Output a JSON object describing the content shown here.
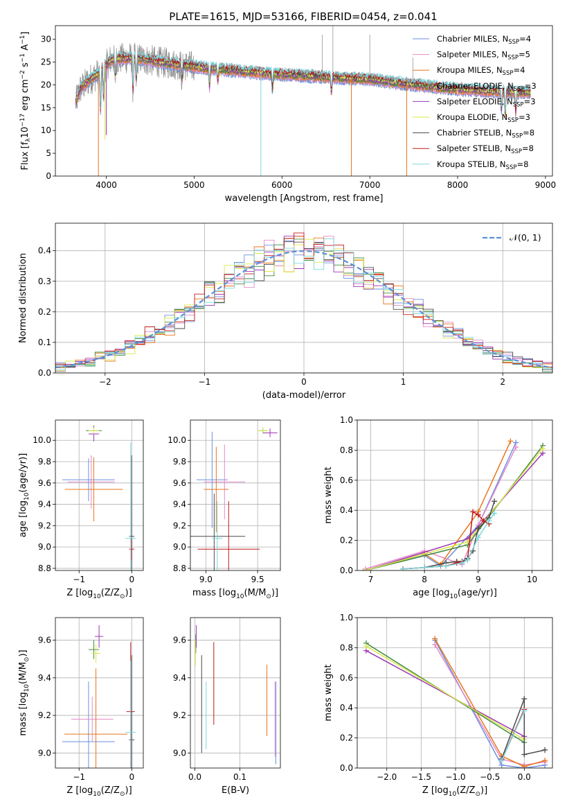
{
  "figure": {
    "title": "PLATE=1615, MJD=53166, FIBERID=0454, z=0.041"
  },
  "models": [
    {
      "key": "chab_miles",
      "label": "Chabrier MILES, N",
      "sub": "SSP",
      "suffix": "=4",
      "color": "#6a8fe0"
    },
    {
      "key": "salp_miles",
      "label": "Salpeter MILES, N",
      "sub": "SSP",
      "suffix": "=5",
      "color": "#e48ac7"
    },
    {
      "key": "krou_miles",
      "label": "Kroupa MILES, N",
      "sub": "SSP",
      "suffix": "=4",
      "color": "#e8751a"
    },
    {
      "key": "chab_elodie",
      "label": "Chabrier ELODIE, N",
      "sub": "SSP",
      "suffix": "=3",
      "color": "#3f8a3f"
    },
    {
      "key": "salp_elodie",
      "label": "Salpeter ELODIE, N",
      "sub": "SSP",
      "suffix": "=3",
      "color": "#9b35b3"
    },
    {
      "key": "krou_elodie",
      "label": "Kroupa ELODIE, N",
      "sub": "SSP",
      "suffix": "=3",
      "color": "#d9e84a"
    },
    {
      "key": "chab_stelib",
      "label": "Chabrier STELIB, N",
      "sub": "SSP",
      "suffix": "=8",
      "color": "#4a4a4a"
    },
    {
      "key": "salp_stelib",
      "label": "Salpeter STELIB, N",
      "sub": "SSP",
      "suffix": "=8",
      "color": "#c21a1a"
    },
    {
      "key": "krou_stelib",
      "label": "Kroupa STELIB, N",
      "sub": "SSP",
      "suffix": "=8",
      "color": "#7ad6dd"
    }
  ],
  "chart_data": [
    {
      "id": "spectrum",
      "type": "line",
      "xlabel": "wavelength [Angstrom, rest frame]",
      "ylabel": "Flux [f",
      "ylabel_lambda": "λ",
      "ylabel_mid": "10",
      "ylabel_exp": "−17",
      "ylabel_end": " erg cm",
      "ylabel_exp2": "−2",
      "ylabel_s": " s",
      "ylabel_exp3": "−1",
      "ylabel_A": " A",
      "ylabel_exp4": "−1",
      "ylabel_close": "]",
      "xlim": [
        3420,
        9080
      ],
      "ylim": [
        0,
        33
      ],
      "xticks": [
        4000,
        5000,
        6000,
        7000,
        8000,
        9000
      ],
      "yticks": [
        0,
        5,
        10,
        15,
        20,
        25,
        30
      ],
      "grid": false,
      "legend": "top-right",
      "wavelength_range": [
        3650,
        8830
      ],
      "continuum_nodes": [
        [
          3650,
          16
        ],
        [
          3700,
          19
        ],
        [
          3800,
          21
        ],
        [
          3950,
          23
        ],
        [
          4050,
          25.5
        ],
        [
          4300,
          26
        ],
        [
          4600,
          25
        ],
        [
          5000,
          24
        ],
        [
          5500,
          23
        ],
        [
          6000,
          22.3
        ],
        [
          6500,
          21.7
        ],
        [
          7000,
          21.2
        ],
        [
          7500,
          20
        ],
        [
          8000,
          19
        ],
        [
          8500,
          18.5
        ],
        [
          8830,
          18.3
        ]
      ],
      "absorption_features": [
        [
          3934,
          8.5
        ],
        [
          3969,
          6.0
        ],
        [
          4102,
          4.0
        ],
        [
          4304,
          7.5
        ],
        [
          4341,
          5.0
        ],
        [
          4861,
          3.5
        ],
        [
          5175,
          4.0
        ],
        [
          5270,
          2.5
        ],
        [
          5892,
          3.5
        ],
        [
          6563,
          3.0
        ],
        [
          8498,
          4.0
        ],
        [
          8542,
          5.0
        ],
        [
          8662,
          4.5
        ]
      ],
      "dropouts": [
        {
          "model": "krou_miles",
          "x": 3910,
          "y": 0
        },
        {
          "model": "salp_elodie",
          "x": 4000,
          "y": 9
        },
        {
          "model": "krou_elodie",
          "x": 3985,
          "y": 8
        },
        {
          "model": "krou_stelib",
          "x": 5760,
          "y": 0
        },
        {
          "model": "krou_miles",
          "x": 6790,
          "y": 0
        },
        {
          "model": "krou_miles",
          "x": 7420,
          "y": 0
        }
      ],
      "spikes": [
        [
          6460,
          31
        ],
        [
          6580,
          33
        ],
        [
          7000,
          31
        ],
        [
          7490,
          26
        ]
      ]
    },
    {
      "id": "residuals",
      "type": "bar",
      "xlabel": "(data-model)/error",
      "ylabel": "Normed distribution",
      "xlim": [
        -2.5,
        2.5
      ],
      "ylim": [
        0,
        0.49
      ],
      "xticks": [
        -2,
        -1,
        0,
        1,
        2
      ],
      "yticks": [
        0.0,
        0.1,
        0.2,
        0.3,
        0.4
      ],
      "grid": true,
      "legend": "top-right",
      "reference": {
        "label": "𝒩(0, 1)",
        "mu": 0,
        "sigma": 1,
        "color": "#5b8fd9"
      },
      "bins": 50
    },
    {
      "id": "age_vs_Z",
      "type": "scatter",
      "xlabel": "Z [log",
      "xlabel_sub": "10",
      "xlabel_rest": "(Z/Z",
      "xlabel_sun": "⊙",
      "xlabel_end": ")]",
      "ylabel": "age  [log",
      "ylabel_sub": "10",
      "ylabel_rest": "(age/yr)]",
      "xlim": [
        -1.45,
        0.22
      ],
      "ylim": [
        8.78,
        10.19
      ],
      "xticks": [
        -1,
        0
      ],
      "yticks": [
        8.8,
        9.0,
        9.2,
        9.4,
        9.6,
        9.8,
        10.0
      ],
      "grid": true,
      "points": [
        {
          "model": "chab_miles",
          "x": -0.82,
          "xerr": 0.5,
          "y": 9.63,
          "yerr": 0.2
        },
        {
          "model": "salp_miles",
          "x": -0.77,
          "xerr": 0.45,
          "y": 9.61,
          "yerr": 0.25
        },
        {
          "model": "krou_miles",
          "x": -0.72,
          "xerr": 0.55,
          "y": 9.54,
          "yerr": 0.3
        },
        {
          "model": "chab_elodie",
          "x": -0.72,
          "xerr": 0.15,
          "y": 10.09,
          "yerr": 0.05
        },
        {
          "model": "salp_elodie",
          "x": -0.72,
          "xerr": 0.1,
          "y": 10.06,
          "yerr": 0.07
        },
        {
          "model": "krou_elodie",
          "x": -0.72,
          "xerr": 0.1,
          "y": 10.09,
          "yerr": 0.03
        },
        {
          "model": "chab_stelib",
          "x": 0.0,
          "xerr": 0.05,
          "y": 9.1,
          "yerr": 0.76
        },
        {
          "model": "salp_stelib",
          "x": 0.0,
          "xerr": 0.05,
          "y": 8.98,
          "yerr": 0.1
        },
        {
          "model": "krou_stelib",
          "x": -0.02,
          "xerr": 0.1,
          "y": 9.08,
          "yerr": 0.9
        }
      ]
    },
    {
      "id": "age_vs_mass",
      "type": "scatter",
      "xlabel": "mass [log",
      "xlabel_sub": "10",
      "xlabel_rest": "(M/M",
      "xlabel_sun": "⊙",
      "xlabel_end": ")]",
      "ylabel": "",
      "xlim": [
        8.85,
        9.72
      ],
      "ylim": [
        8.78,
        10.19
      ],
      "xticks": [
        9.0,
        9.5
      ],
      "yticks": [
        8.8,
        9.0,
        9.2,
        9.4,
        9.6,
        9.8,
        10.0
      ],
      "grid": true,
      "points": [
        {
          "model": "chab_miles",
          "x": 9.06,
          "xerr": 0.15,
          "y": 9.63,
          "yerr": 0.45
        },
        {
          "model": "salp_miles",
          "x": 9.18,
          "xerr": 0.2,
          "y": 9.61,
          "yerr": 0.35
        },
        {
          "model": "krou_miles",
          "x": 9.1,
          "xerr": 0.12,
          "y": 9.54,
          "yerr": 0.4
        },
        {
          "model": "chab_elodie",
          "x": 9.55,
          "xerr": 0.04,
          "y": 10.09,
          "yerr": 0.03
        },
        {
          "model": "salp_elodie",
          "x": 9.62,
          "xerr": 0.07,
          "y": 10.07,
          "yerr": 0.04
        },
        {
          "model": "krou_elodie",
          "x": 9.55,
          "xerr": 0.05,
          "y": 10.09,
          "yerr": 0.03
        },
        {
          "model": "chab_stelib",
          "x": 9.08,
          "xerr": 0.3,
          "y": 9.1,
          "yerr": 0.4
        },
        {
          "model": "salp_stelib",
          "x": 9.22,
          "xerr": 0.3,
          "y": 8.98,
          "yerr": 0.45
        },
        {
          "model": "krou_stelib",
          "x": 9.11,
          "xerr": 0.05,
          "y": 9.08,
          "yerr": 0.35
        }
      ]
    },
    {
      "id": "mass_weight_vs_age",
      "type": "line",
      "xlabel": "age  [log",
      "xlabel_sub": "10",
      "xlabel_rest": "(age/yr)]",
      "ylabel": "mass weight",
      "xlim": [
        6.75,
        10.38
      ],
      "ylim": [
        0,
        1
      ],
      "xticks": [
        7,
        8,
        9,
        10
      ],
      "yticks": [
        0.0,
        0.2,
        0.4,
        0.6,
        0.8,
        1.0
      ],
      "grid": true,
      "series": [
        {
          "model": "chab_miles",
          "x": [
            6.9,
            8.0,
            8.3,
            9.0,
            9.7
          ],
          "y": [
            0.0,
            0.1,
            0.03,
            0.3,
            0.85
          ]
        },
        {
          "model": "salp_miles",
          "x": [
            6.9,
            8.0,
            8.7,
            9.0,
            9.7
          ],
          "y": [
            0.01,
            0.13,
            0.04,
            0.3,
            0.82
          ]
        },
        {
          "model": "krou_miles",
          "x": [
            6.9,
            8.0,
            8.3,
            9.0,
            9.6
          ],
          "y": [
            0.0,
            0.11,
            0.04,
            0.39,
            0.86
          ]
        },
        {
          "model": "chab_elodie",
          "x": [
            6.9,
            8.8,
            10.2
          ],
          "y": [
            0.0,
            0.17,
            0.83
          ]
        },
        {
          "model": "salp_elodie",
          "x": [
            6.9,
            8.8,
            10.2
          ],
          "y": [
            0.0,
            0.21,
            0.78
          ]
        },
        {
          "model": "krou_elodie",
          "x": [
            6.9,
            8.8,
            10.2
          ],
          "y": [
            0.0,
            0.19,
            0.81
          ]
        },
        {
          "model": "chab_stelib",
          "x": [
            7.6,
            8.0,
            8.4,
            8.6,
            8.7,
            8.8,
            8.9,
            9.0,
            9.2,
            9.3
          ],
          "y": [
            0.01,
            0.02,
            0.05,
            0.06,
            0.06,
            0.08,
            0.13,
            0.28,
            0.35,
            0.46
          ]
        },
        {
          "model": "salp_stelib",
          "x": [
            7.6,
            8.0,
            8.4,
            8.6,
            8.8,
            8.9,
            9.0,
            9.1,
            9.2
          ],
          "y": [
            0.01,
            0.02,
            0.03,
            0.05,
            0.07,
            0.39,
            0.37,
            0.33,
            0.31
          ]
        },
        {
          "model": "krou_stelib",
          "x": [
            7.6,
            8.0,
            8.4,
            8.7,
            8.8,
            9.0,
            9.2,
            9.3
          ],
          "y": [
            0.01,
            0.02,
            0.03,
            0.05,
            0.07,
            0.22,
            0.33,
            0.38
          ]
        }
      ]
    },
    {
      "id": "mass_vs_Z",
      "type": "scatter",
      "xlabel": "Z [log",
      "xlabel_sub": "10",
      "xlabel_rest": "(Z/Z",
      "xlabel_sun": "⊙",
      "xlabel_end": ")]",
      "ylabel": "mass [log",
      "ylabel_sub": "10",
      "ylabel_rest": "(M/M",
      "ylabel_sun": "⊙",
      "ylabel_end": ")]",
      "xlim": [
        -1.45,
        0.22
      ],
      "ylim": [
        8.92,
        9.72
      ],
      "xticks": [
        -1,
        0
      ],
      "yticks": [
        9.0,
        9.2,
        9.4,
        9.6
      ],
      "grid": true,
      "points": [
        {
          "model": "chab_miles",
          "x": -0.82,
          "xerr": 0.5,
          "y": 9.06,
          "yerr": 0.32
        },
        {
          "model": "salp_miles",
          "x": -0.75,
          "xerr": 0.4,
          "y": 9.18,
          "yerr": 0.12
        },
        {
          "model": "krou_miles",
          "x": -0.68,
          "xerr": 0.6,
          "y": 9.1,
          "yerr": 0.35
        },
        {
          "model": "chab_elodie",
          "x": -0.72,
          "xerr": 0.1,
          "y": 9.55,
          "yerr": 0.05
        },
        {
          "model": "salp_elodie",
          "x": -0.62,
          "xerr": 0.08,
          "y": 9.62,
          "yerr": 0.06
        },
        {
          "model": "krou_elodie",
          "x": -0.68,
          "xerr": 0.08,
          "y": 9.53,
          "yerr": 0.05
        },
        {
          "model": "chab_stelib",
          "x": 0.0,
          "xerr": 0.05,
          "y": 9.07,
          "yerr": 0.45
        },
        {
          "model": "salp_stelib",
          "x": -0.02,
          "xerr": 0.08,
          "y": 9.22,
          "yerr": 0.37
        },
        {
          "model": "krou_stelib",
          "x": -0.02,
          "xerr": 0.1,
          "y": 9.11,
          "yerr": 0.38
        }
      ]
    },
    {
      "id": "mass_vs_ebv",
      "type": "scatter",
      "xlabel": "E(B-V)",
      "ylabel": "",
      "xlim": [
        -0.01,
        0.19
      ],
      "ylim": [
        8.92,
        9.72
      ],
      "xticks": [
        0.0,
        0.1
      ],
      "yticks": [
        9.0,
        9.2,
        9.4,
        9.6
      ],
      "grid": true,
      "points": [
        {
          "model": "chab_miles",
          "x": 0.18,
          "xerr": 0,
          "y": 9.16,
          "yerr": 0.22
        },
        {
          "model": "salp_miles",
          "x": 0.178,
          "xerr": 0,
          "y": 9.18,
          "yerr": 0.2
        },
        {
          "model": "krou_miles",
          "x": 0.16,
          "xerr": 0,
          "y": 9.28,
          "yerr": 0.19
        },
        {
          "model": "chab_elodie",
          "x": 0.002,
          "xerr": 0,
          "y": 9.58,
          "yerr": 0.05
        },
        {
          "model": "salp_elodie",
          "x": 0.003,
          "xerr": 0,
          "y": 9.62,
          "yerr": 0.06
        },
        {
          "model": "krou_elodie",
          "x": 0.001,
          "xerr": 0,
          "y": 9.53,
          "yerr": 0.07
        },
        {
          "model": "chab_stelib",
          "x": 0.015,
          "xerr": 0,
          "y": 9.26,
          "yerr": 0.26
        },
        {
          "model": "salp_stelib",
          "x": 0.042,
          "xerr": 0,
          "y": 9.37,
          "yerr": 0.22
        },
        {
          "model": "krou_stelib",
          "x": 0.025,
          "xerr": 0,
          "y": 9.2,
          "yerr": 0.18
        }
      ]
    },
    {
      "id": "mass_weight_vs_Z",
      "type": "line",
      "xlabel": "Z [log",
      "xlabel_sub": "10",
      "xlabel_rest": "(Z/Z",
      "xlabel_sun": "⊙",
      "xlabel_end": ")]",
      "ylabel": "mass weight",
      "xlim": [
        -2.43,
        0.41
      ],
      "ylim": [
        0,
        1
      ],
      "xticks": [
        -2.0,
        -1.5,
        -1.0,
        -0.5,
        0.0
      ],
      "yticks": [
        0.0,
        0.2,
        0.4,
        0.6,
        0.8,
        1.0
      ],
      "grid": true,
      "series": [
        {
          "model": "chab_miles",
          "x": [
            -1.3,
            -0.33,
            0.0,
            0.3
          ],
          "y": [
            0.85,
            0.02,
            0.0,
            0.02
          ]
        },
        {
          "model": "salp_miles",
          "x": [
            -1.3,
            -0.33,
            0.0,
            0.3
          ],
          "y": [
            0.82,
            0.06,
            0.02,
            0.04
          ]
        },
        {
          "model": "krou_miles",
          "x": [
            -1.3,
            -0.33,
            0.0,
            0.3
          ],
          "y": [
            0.86,
            0.08,
            0.01,
            0.05
          ]
        },
        {
          "model": "chab_elodie",
          "x": [
            -2.3,
            0.0
          ],
          "y": [
            0.83,
            0.17
          ]
        },
        {
          "model": "salp_elodie",
          "x": [
            -2.3,
            0.0
          ],
          "y": [
            0.78,
            0.21
          ]
        },
        {
          "model": "krou_elodie",
          "x": [
            -2.3,
            0.0
          ],
          "y": [
            0.81,
            0.19
          ]
        },
        {
          "model": "chab_stelib",
          "x": [
            -0.33,
            0.0,
            0.0,
            0.3
          ],
          "y": [
            0.06,
            0.46,
            0.09,
            0.12
          ]
        },
        {
          "model": "salp_stelib",
          "x": [
            -0.33,
            0.0
          ],
          "y": [
            0.05,
            0.39
          ]
        },
        {
          "model": "krou_stelib",
          "x": [
            -0.33,
            0.0
          ],
          "y": [
            0.05,
            0.38
          ]
        }
      ]
    }
  ]
}
